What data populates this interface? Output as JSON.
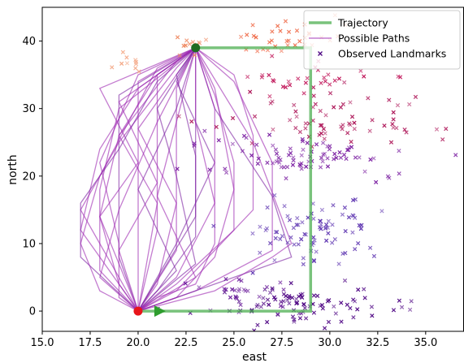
{
  "chart_data": {
    "type": "line",
    "title": "",
    "xlabel": "east",
    "ylabel": "north",
    "xlim": [
      15.0,
      37.0
    ],
    "ylim": [
      -3.0,
      45.0
    ],
    "xticks": [
      "15.0",
      "17.5",
      "20.0",
      "22.5",
      "25.0",
      "27.5",
      "30.0",
      "32.5",
      "35.0"
    ],
    "yticks": [
      "0",
      "10",
      "20",
      "30",
      "40"
    ],
    "grid": false,
    "legend_position": "top-right",
    "legend": [
      "Trajectory",
      "Possible Paths",
      "Observed Landmarks"
    ],
    "colors": {
      "trajectory": "#4caf50",
      "paths": "#9c27b0",
      "paths_dark": "#7b1fa2",
      "start_point": "#e8151b",
      "end_point": "#1e6b22",
      "direction_marker": "#2e9d2e"
    },
    "trajectory": {
      "name": "Trajectory",
      "x": [
        20,
        29,
        29,
        23
      ],
      "y": [
        0,
        0,
        39,
        39
      ]
    },
    "start_point": {
      "x": 20,
      "y": 0
    },
    "end_point": {
      "x": 23,
      "y": 39
    },
    "direction_marker": {
      "x": 21.1,
      "y": 0
    },
    "possible_paths": {
      "name": "Possible Paths",
      "paths": [
        {
          "x": [
            20,
            19,
            19,
            19,
            23
          ],
          "y": [
            0,
            8,
            20,
            32,
            39
          ]
        },
        {
          "x": [
            20,
            20,
            20,
            20,
            23
          ],
          "y": [
            0,
            10,
            22,
            34,
            39
          ]
        },
        {
          "x": [
            20,
            21,
            21,
            21,
            23
          ],
          "y": [
            0,
            12,
            24,
            35,
            39
          ]
        },
        {
          "x": [
            20,
            22,
            22,
            22,
            23
          ],
          "y": [
            0,
            9,
            21,
            33,
            39
          ]
        },
        {
          "x": [
            20,
            23,
            23,
            23
          ],
          "y": [
            0,
            14,
            26,
            39
          ]
        },
        {
          "x": [
            20,
            18,
            18,
            19,
            23
          ],
          "y": [
            0,
            6,
            18,
            30,
            39
          ]
        },
        {
          "x": [
            20,
            17,
            18,
            20,
            23
          ],
          "y": [
            0,
            12,
            24,
            33,
            39
          ]
        },
        {
          "x": [
            20,
            18,
            19,
            21,
            23
          ],
          "y": [
            0,
            5,
            15,
            28,
            39
          ]
        },
        {
          "x": [
            20,
            22,
            20,
            22,
            23
          ],
          "y": [
            0,
            6,
            18,
            30,
            39
          ]
        },
        {
          "x": [
            20,
            21,
            22,
            20,
            23
          ],
          "y": [
            0,
            4,
            16,
            27,
            39
          ]
        },
        {
          "x": [
            20,
            23,
            21,
            22,
            23
          ],
          "y": [
            0,
            5,
            17,
            28,
            39
          ]
        },
        {
          "x": [
            20,
            19,
            21,
            19,
            23
          ],
          "y": [
            0,
            9,
            19,
            31,
            39
          ]
        },
        {
          "x": [
            20,
            22,
            24,
            22,
            23
          ],
          "y": [
            0,
            10,
            22,
            34,
            39
          ]
        },
        {
          "x": [
            20,
            18,
            20,
            18,
            23
          ],
          "y": [
            0,
            14,
            22,
            33,
            39
          ]
        },
        {
          "x": [
            20,
            21,
            19,
            21,
            23
          ],
          "y": [
            0,
            16,
            26,
            35,
            39
          ]
        },
        {
          "x": [
            20,
            17,
            19,
            22,
            23
          ],
          "y": [
            0,
            15,
            25,
            36,
            39
          ]
        },
        {
          "x": [
            20,
            23,
            22,
            21,
            23
          ],
          "y": [
            0,
            7,
            20,
            30,
            39
          ]
        },
        {
          "x": [
            20,
            22,
            25,
            25,
            24,
            23
          ],
          "y": [
            0,
            4,
            12,
            22,
            32,
            39
          ]
        },
        {
          "x": [
            20,
            22,
            26,
            26,
            25,
            23
          ],
          "y": [
            0,
            3,
            15,
            26,
            35,
            39
          ]
        },
        {
          "x": [
            20,
            23,
            27,
            27,
            25,
            23
          ],
          "y": [
            0,
            3,
            9,
            22,
            34,
            39
          ]
        },
        {
          "x": [
            20,
            24,
            28,
            27,
            24,
            23
          ],
          "y": [
            0,
            4,
            8,
            17,
            30,
            39
          ]
        },
        {
          "x": [
            20,
            21,
            23,
            24,
            24,
            23
          ],
          "y": [
            0,
            2,
            4,
            10,
            30,
            39
          ]
        },
        {
          "x": [
            20,
            22,
            24,
            25,
            24,
            23
          ],
          "y": [
            0,
            2,
            8,
            18,
            33,
            39
          ]
        },
        {
          "x": [
            20,
            24,
            27,
            28,
            26,
            23
          ],
          "y": [
            0,
            3,
            8,
            10,
            25,
            39
          ]
        },
        {
          "x": [
            20,
            17,
            17,
            19,
            21,
            23
          ],
          "y": [
            0,
            8,
            16,
            24,
            34,
            39
          ]
        },
        {
          "x": [
            20,
            18,
            17,
            18,
            21,
            23
          ],
          "y": [
            0,
            3,
            10,
            20,
            36,
            39
          ]
        },
        {
          "x": [
            20,
            19,
            19,
            18,
            20,
            23
          ],
          "y": [
            0,
            2,
            10,
            22,
            35,
            39
          ]
        },
        {
          "x": [
            20,
            19,
            18,
            19,
            22,
            23
          ],
          "y": [
            0,
            4,
            14,
            26,
            37,
            39
          ]
        },
        {
          "x": [
            20,
            21,
            23,
            23,
            22,
            23
          ],
          "y": [
            0,
            3,
            11,
            23,
            35,
            39
          ]
        },
        {
          "x": [
            20,
            22,
            24,
            23,
            23
          ],
          "y": [
            0,
            5,
            16,
            28,
            39
          ]
        }
      ]
    },
    "landmarks": {
      "name": "Observed Landmarks",
      "clusters": [
        {
          "color": "#4b0082",
          "cx": 28.8,
          "cy": 1.0,
          "sx": 2.3,
          "sy": 1.4,
          "n": 90
        },
        {
          "color": "#6a1b9a",
          "cx": 25.5,
          "cy": 2.5,
          "sx": 1.4,
          "sy": 1.2,
          "n": 25
        },
        {
          "color": "#5e35b1",
          "cx": 29.2,
          "cy": 12.5,
          "sx": 1.7,
          "sy": 2.4,
          "n": 85
        },
        {
          "color": "#7b1fa2",
          "cx": 28.8,
          "cy": 22.5,
          "sx": 2.8,
          "sy": 1.6,
          "n": 85
        },
        {
          "color": "#ad1457",
          "cx": 30.5,
          "cy": 28.5,
          "sx": 2.5,
          "sy": 2.2,
          "n": 70
        },
        {
          "color": "#c2185b",
          "cx": 29.0,
          "cy": 34.5,
          "sx": 1.8,
          "sy": 1.3,
          "n": 30
        },
        {
          "color": "#ef6c4a",
          "cx": 27.5,
          "cy": 40.5,
          "sx": 1.5,
          "sy": 1.3,
          "n": 35
        },
        {
          "color": "#f4a582",
          "cx": 19.3,
          "cy": 37.5,
          "sx": 0.4,
          "sy": 1.0,
          "n": 10
        },
        {
          "color": "#ef8a62",
          "cx": 22.8,
          "cy": 40.0,
          "sx": 0.5,
          "sy": 1.0,
          "n": 12
        }
      ]
    }
  }
}
